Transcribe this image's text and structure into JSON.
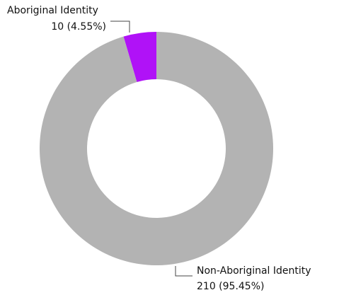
{
  "chart_data": {
    "type": "donut",
    "categories": [
      "Aboriginal Identity",
      "Non-Aboriginal Identity"
    ],
    "values": [
      10,
      210
    ],
    "value_labels": [
      "10 (4.55%)",
      "210 (95.45%)"
    ],
    "colors": [
      "#b012f7",
      "#b3b3b3"
    ]
  }
}
